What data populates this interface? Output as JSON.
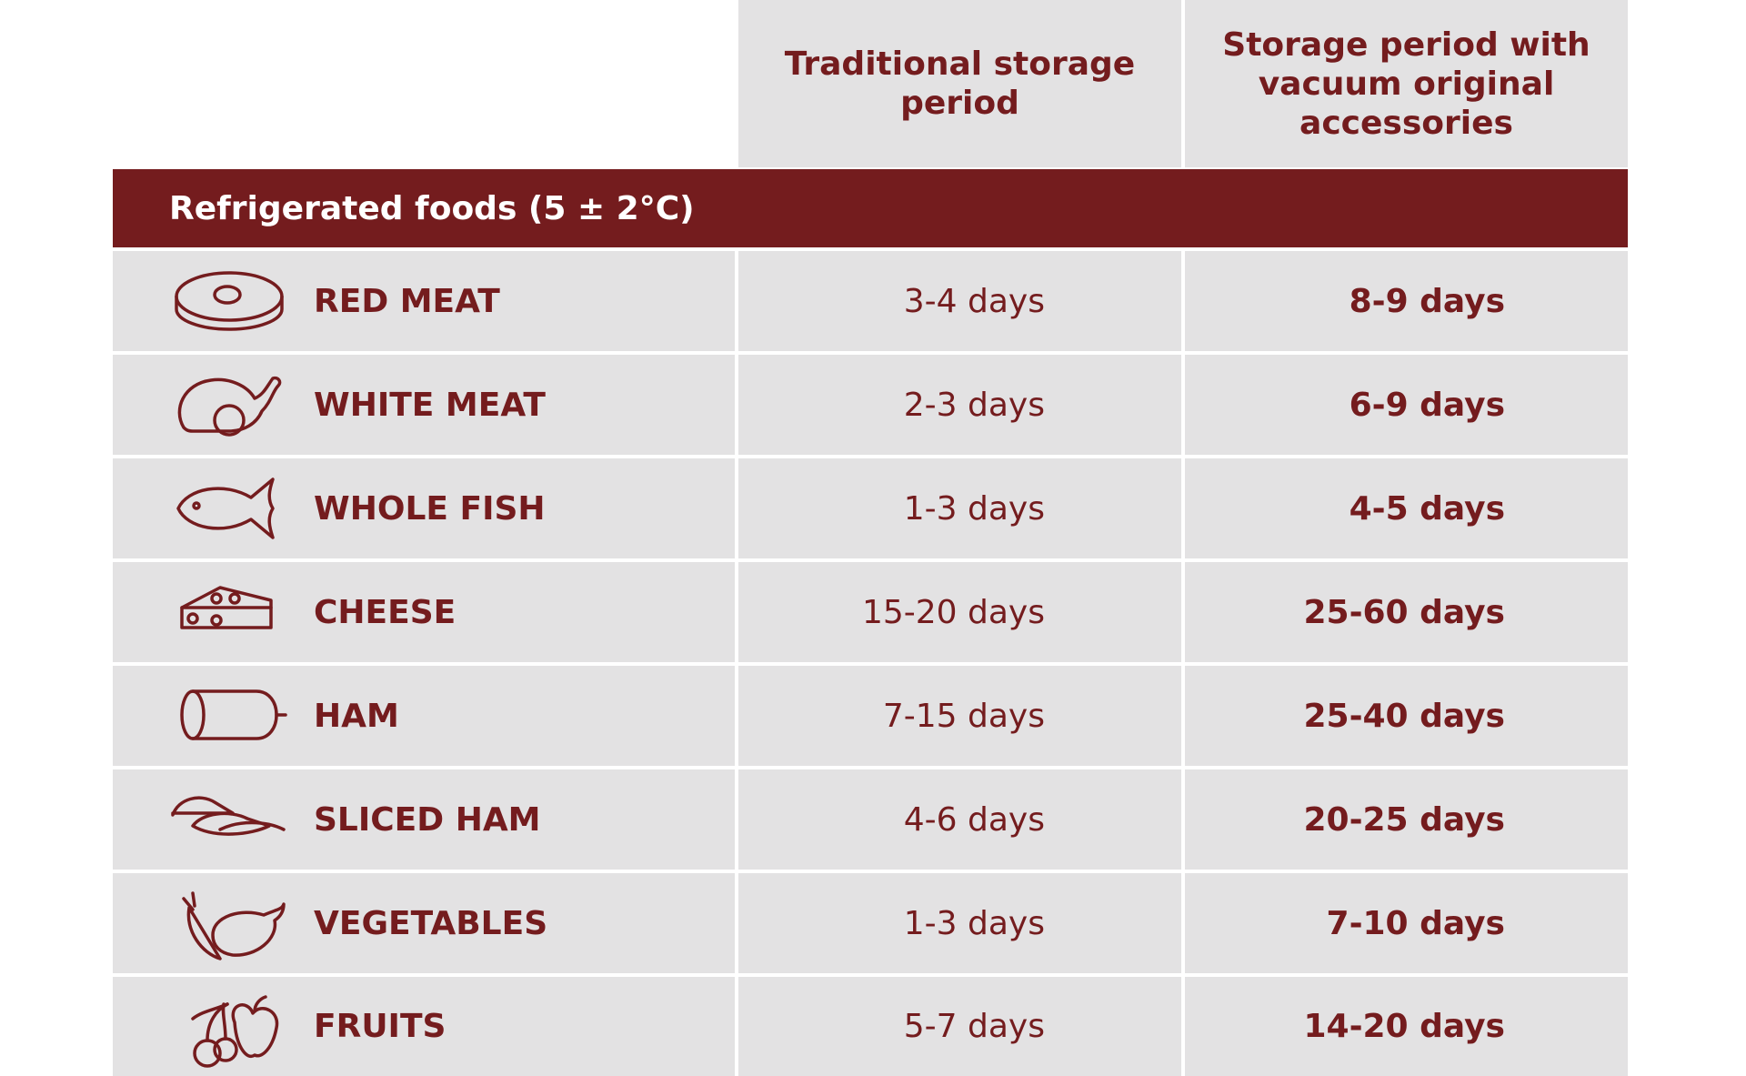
{
  "header": {
    "columns": [
      "Traditional storage period",
      "Storage period with vacuum original accessories"
    ]
  },
  "section": {
    "title": "Refrigerated foods (5 ± 2°C)"
  },
  "table": {
    "rows": [
      [
        "RED MEAT",
        "3-4 days",
        "8-9 days"
      ],
      [
        "WHITE MEAT",
        "2-3 days",
        "6-9 days"
      ],
      [
        "WHOLE FISH",
        "1-3 days",
        "4-5 days"
      ],
      [
        "CHEESE",
        "15-20 days",
        "25-60 days"
      ],
      [
        "HAM",
        "7-15 days",
        "25-40 days"
      ],
      [
        "SLICED HAM",
        "4-6 days",
        "20-25 days"
      ],
      [
        "VEGETABLES",
        "1-3 days",
        "7-10 days"
      ],
      [
        "FRUITS",
        "5-7 days",
        "14-20 days"
      ]
    ]
  }
}
